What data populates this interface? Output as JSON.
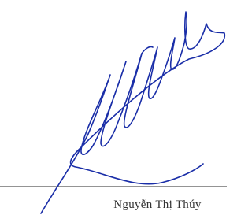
{
  "signature": {
    "name": "Nguyễn Thị Thúy"
  }
}
